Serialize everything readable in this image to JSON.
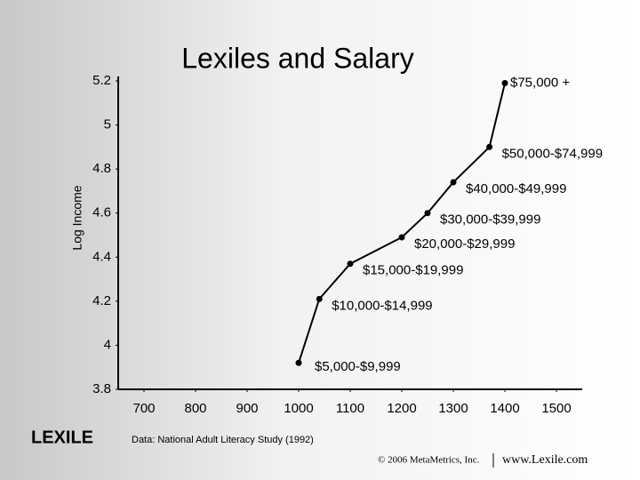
{
  "chart_data": {
    "type": "line",
    "title": "Lexiles and Salary",
    "y_label": "Log Income",
    "x": [
      1000,
      1040,
      1100,
      1200,
      1250,
      1300,
      1370,
      1400
    ],
    "values": [
      3.92,
      4.21,
      4.37,
      4.49,
      4.6,
      4.74,
      4.9,
      5.19
    ],
    "point_labels": [
      "$5,000-$9,999",
      "$10,000-$14,999",
      "$15,000-$19,999",
      "$20,000-$29,999",
      "$30,000-$39,999",
      "$40,000-$49,999",
      "$50,000-$74,999",
      "$75,000 +"
    ],
    "color": "#000000",
    "xlim": [
      650,
      1550
    ],
    "xticks": [
      700,
      800,
      900,
      1000,
      1100,
      1200,
      1300,
      1400,
      1500
    ],
    "ylim": [
      3.8,
      5.2
    ],
    "yticks": [
      3.8,
      4,
      4.2,
      4.4,
      4.6,
      4.8,
      5,
      5.2
    ],
    "grid": false
  },
  "source": "Data: National Adult Literacy Study (1992)",
  "logo": "LEXILE",
  "footer": {
    "copyright": "© 2006 MetaMetrics, Inc.",
    "url": "www.Lexile.com"
  }
}
